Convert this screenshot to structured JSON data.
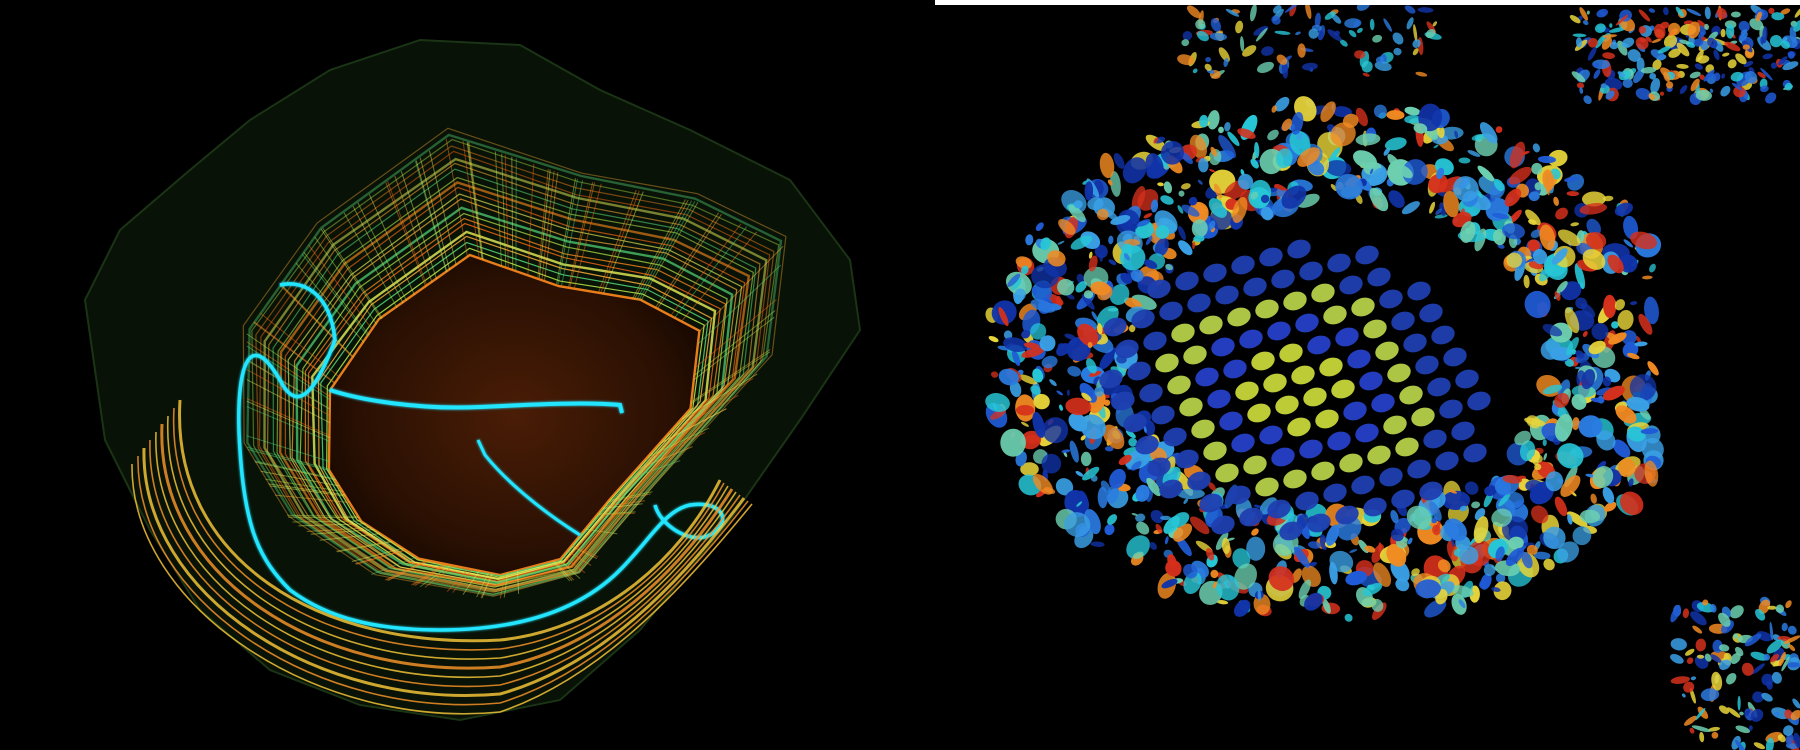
{
  "panels": [
    {
      "id": "left",
      "content": "point-cloud-reconstruction"
    },
    {
      "id": "right",
      "content": "gaussian-ellipsoid-map"
    }
  ],
  "colors": {
    "background": "#000000",
    "trajectory": "#22e5ff",
    "floor": "#3a1604",
    "orange": "#ff8a1e",
    "yellow_green": "#b6e64a",
    "green": "#53d87a",
    "blue": "#1f5bd6",
    "deep_blue": "#1133a8",
    "cyan": "#27c6d6",
    "red": "#d5301c",
    "yellow": "#e8d53a"
  }
}
